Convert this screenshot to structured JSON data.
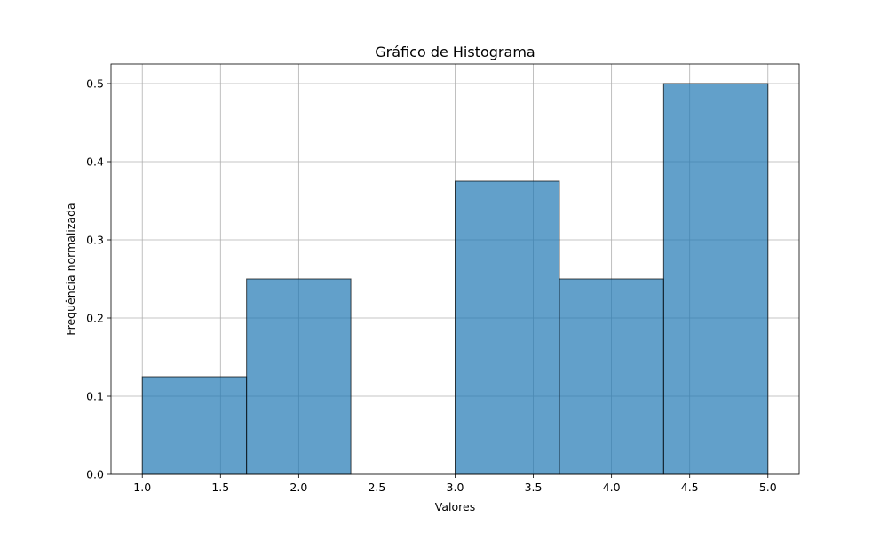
{
  "chart_data": {
    "type": "bar",
    "title": "Gráfico de Histograma",
    "xlabel": "Valores",
    "ylabel": "Frequência normalizada",
    "bin_edges": [
      1.0,
      1.6667,
      2.3333,
      3.0,
      3.6667,
      4.3333,
      5.0
    ],
    "values": [
      0.125,
      0.25,
      0.0,
      0.375,
      0.25,
      0.5
    ],
    "xlim": [
      0.8,
      5.2
    ],
    "ylim": [
      0,
      0.525
    ],
    "xticks": [
      1.0,
      1.5,
      2.0,
      2.5,
      3.0,
      3.5,
      4.0,
      4.5,
      5.0
    ],
    "xtick_labels": [
      "1.0",
      "1.5",
      "2.0",
      "2.5",
      "3.0",
      "3.5",
      "4.0",
      "4.5",
      "5.0"
    ],
    "yticks": [
      0.0,
      0.1,
      0.2,
      0.3,
      0.4,
      0.5
    ],
    "ytick_labels": [
      "0.0",
      "0.1",
      "0.2",
      "0.3",
      "0.4",
      "0.5"
    ],
    "grid": true,
    "bar_color": "#1f77b4",
    "edge_color": "#000000"
  }
}
